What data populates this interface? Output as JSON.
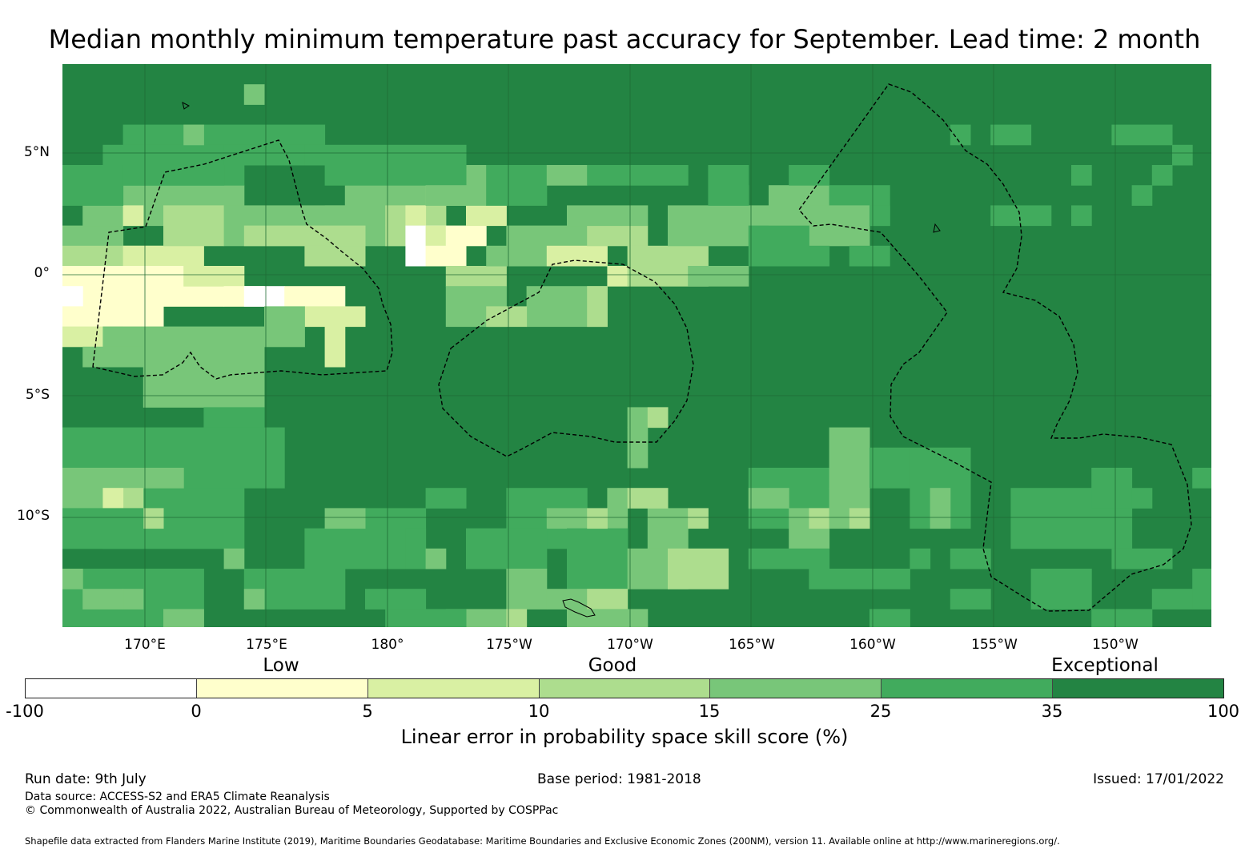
{
  "title": "Median monthly minimum temperature past accuracy for September. Lead time: 2 month",
  "map": {
    "lat_labels": [
      "5°N",
      "0°",
      "5°S",
      "10°S"
    ],
    "lon_labels": [
      "170°E",
      "175°E",
      "180°",
      "175°W",
      "170°W",
      "165°W",
      "160°W",
      "155°W",
      "150°W"
    ],
    "extent": {
      "lon_min": 166.6,
      "lon_max": 214.0,
      "lat_min": -14.5,
      "lat_max": 8.7
    },
    "gridlines": true,
    "eez_boundaries": "dashed black",
    "colors": [
      "#ffffff",
      "#ffffcc",
      "#d9f0a3",
      "#addd8e",
      "#78c679",
      "#41ab5d",
      "#238443"
    ]
  },
  "colorbar": {
    "category_labels": [
      "Low",
      "Good",
      "Exceptional"
    ],
    "ticks": [
      "-100",
      "0",
      "5",
      "10",
      "15",
      "25",
      "35",
      "100"
    ],
    "colors": [
      "#ffffff",
      "#ffffcc",
      "#d9f0a3",
      "#addd8e",
      "#78c679",
      "#41ab5d",
      "#238443"
    ],
    "title": "Linear error in probability space skill score (%)"
  },
  "footer": {
    "run_date": "Run date: 9th July",
    "base_period": "Base period: 1981-2018",
    "issued": "Issued: 17/01/2022",
    "data_source": "Data source: ACCESS-S2 and ERA5 Climate Reanalysis",
    "copyright": "© Commonwealth of Australia 2022, Australian Bureau of Meteorology, Supported by COSPPac",
    "shapefile": "Shapefile data extracted from Flanders Marine Institute (2019), Maritime Boundaries Geodatabase: Maritime Boundaries and Exclusive Economic Zones (200NM), version 11. Available online at http://www.marineregions.org/."
  }
}
